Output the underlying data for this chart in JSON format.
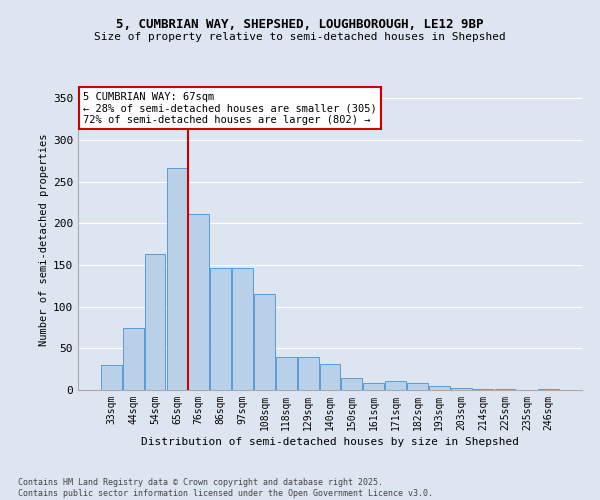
{
  "title1": "5, CUMBRIAN WAY, SHEPSHED, LOUGHBOROUGH, LE12 9BP",
  "title2": "Size of property relative to semi-detached houses in Shepshed",
  "xlabel": "Distribution of semi-detached houses by size in Shepshed",
  "ylabel": "Number of semi-detached properties",
  "categories": [
    "33sqm",
    "44sqm",
    "54sqm",
    "65sqm",
    "76sqm",
    "86sqm",
    "97sqm",
    "108sqm",
    "118sqm",
    "129sqm",
    "140sqm",
    "150sqm",
    "161sqm",
    "171sqm",
    "182sqm",
    "193sqm",
    "203sqm",
    "214sqm",
    "225sqm",
    "235sqm",
    "246sqm"
  ],
  "values": [
    30,
    75,
    163,
    267,
    211,
    147,
    147,
    115,
    40,
    40,
    31,
    15,
    9,
    11,
    9,
    5,
    3,
    1,
    1,
    0,
    1
  ],
  "bar_color": "#b8d0e8",
  "bar_edge_color": "#5b9bd5",
  "highlight_line_color": "#cc0000",
  "annotation_text": "5 CUMBRIAN WAY: 67sqm\n← 28% of semi-detached houses are smaller (305)\n72% of semi-detached houses are larger (802) →",
  "annotation_box_color": "#ffffff",
  "annotation_box_edge": "#cc0000",
  "footer1": "Contains HM Land Registry data © Crown copyright and database right 2025.",
  "footer2": "Contains public sector information licensed under the Open Government Licence v3.0.",
  "bg_color": "#dde5f0",
  "plot_bg_color": "#dde5f0",
  "ylim": [
    0,
    360
  ],
  "yticks": [
    0,
    50,
    100,
    150,
    200,
    250,
    300,
    350
  ]
}
